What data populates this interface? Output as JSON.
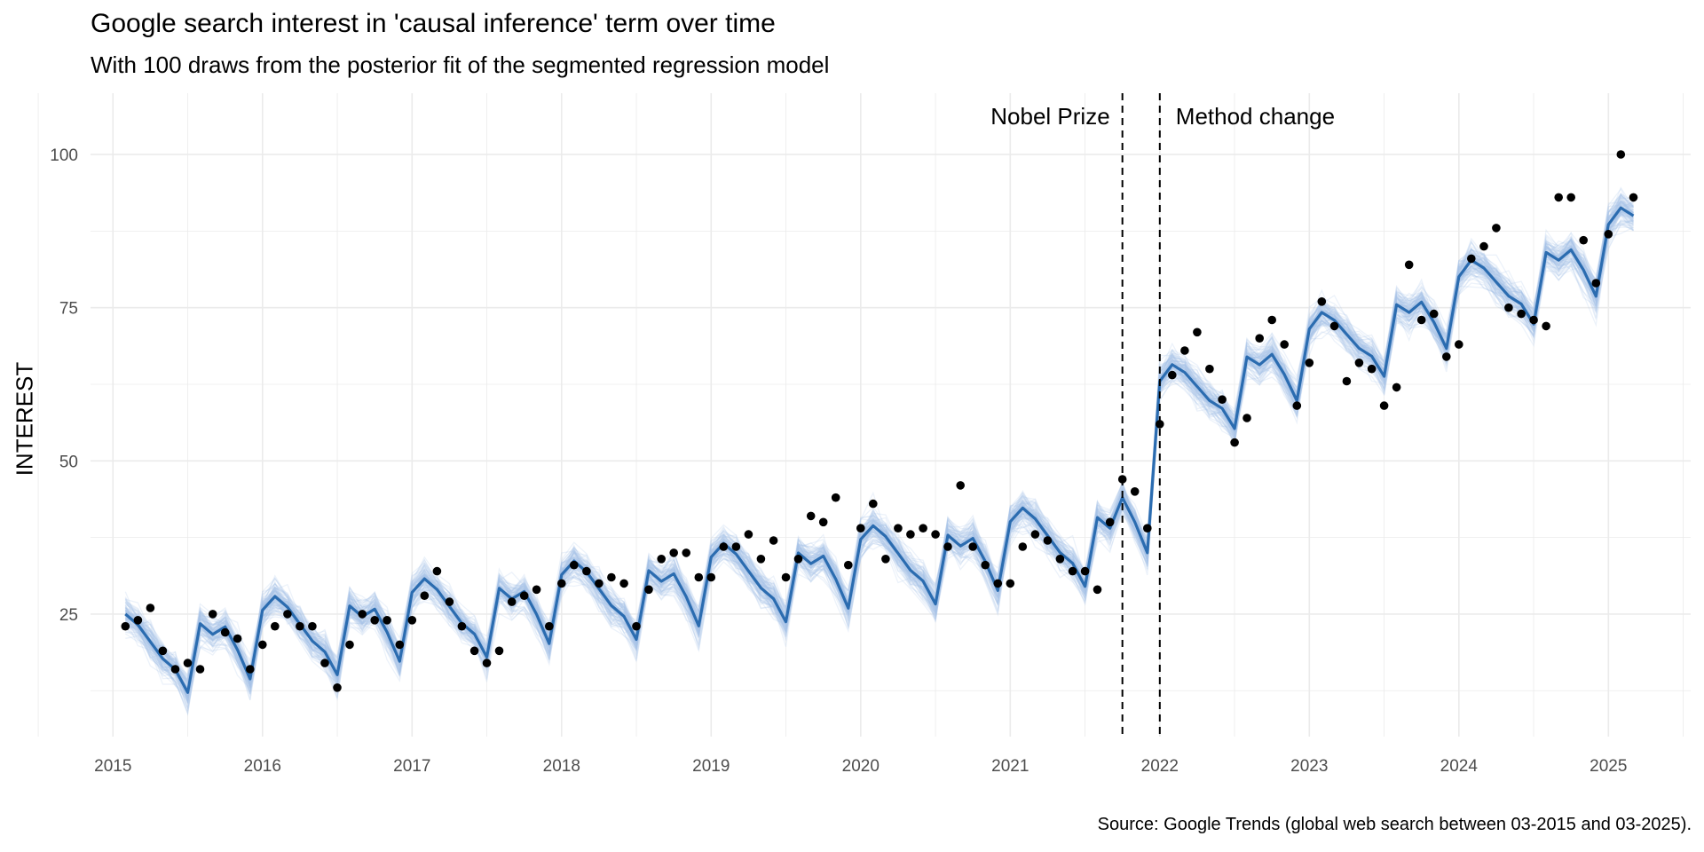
{
  "title": "Google search interest in 'causal inference' term over time",
  "subtitle": "With 100 draws from the posterior fit of the segmented regression model",
  "caption": "Source: Google Trends (global web search between 03-2015 and 03-2025).",
  "colors": {
    "fit": "#2b6cb0",
    "draws": "#a8c4e6",
    "points": "#000000",
    "grid": "#ebebeb",
    "vline": "#000000"
  },
  "chart_data": {
    "type": "scatter",
    "title": "Google search interest in 'causal inference' term over time",
    "ylabel": "INTEREST",
    "xlabel": "",
    "xlim": [
      2014.85,
      2025.55
    ],
    "ylim": [
      5,
      110
    ],
    "x_ticks": [
      2015,
      2016,
      2017,
      2018,
      2019,
      2020,
      2021,
      2022,
      2023,
      2024,
      2025
    ],
    "y_ticks": [
      25,
      50,
      75,
      100
    ],
    "grid": true,
    "legend": "none",
    "vlines": [
      {
        "x": 2021.75,
        "label": "Nobel Prize",
        "label_side": "left"
      },
      {
        "x": 2022.0,
        "label": "Method change",
        "label_side": "right"
      }
    ],
    "points": {
      "x": [
        2015.083,
        2015.167,
        2015.25,
        2015.333,
        2015.417,
        2015.5,
        2015.583,
        2015.667,
        2015.75,
        2015.833,
        2015.917,
        2016.0,
        2016.083,
        2016.167,
        2016.25,
        2016.333,
        2016.417,
        2016.5,
        2016.583,
        2016.667,
        2016.75,
        2016.833,
        2016.917,
        2017.0,
        2017.083,
        2017.167,
        2017.25,
        2017.333,
        2017.417,
        2017.5,
        2017.583,
        2017.667,
        2017.75,
        2017.833,
        2017.917,
        2018.0,
        2018.083,
        2018.167,
        2018.25,
        2018.333,
        2018.417,
        2018.5,
        2018.583,
        2018.667,
        2018.75,
        2018.833,
        2018.917,
        2019.0,
        2019.083,
        2019.167,
        2019.25,
        2019.333,
        2019.417,
        2019.5,
        2019.583,
        2019.667,
        2019.75,
        2019.833,
        2019.917,
        2020.0,
        2020.083,
        2020.167,
        2020.25,
        2020.333,
        2020.417,
        2020.5,
        2020.583,
        2020.667,
        2020.75,
        2020.833,
        2020.917,
        2021.0,
        2021.083,
        2021.167,
        2021.25,
        2021.333,
        2021.417,
        2021.5,
        2021.583,
        2021.667,
        2021.75,
        2021.833,
        2021.917,
        2022.0,
        2022.083,
        2022.167,
        2022.25,
        2022.333,
        2022.417,
        2022.5,
        2022.583,
        2022.667,
        2022.75,
        2022.833,
        2022.917,
        2023.0,
        2023.083,
        2023.167,
        2023.25,
        2023.333,
        2023.417,
        2023.5,
        2023.583,
        2023.667,
        2023.75,
        2023.833,
        2023.917,
        2024.0,
        2024.083,
        2024.167,
        2024.25,
        2024.333,
        2024.417,
        2024.5,
        2024.583,
        2024.667,
        2024.75,
        2024.833,
        2024.917,
        2025.0,
        2025.083,
        2025.167
      ],
      "y": [
        23,
        24,
        26,
        19,
        16,
        17,
        16,
        25,
        22,
        21,
        16,
        20,
        23,
        25,
        23,
        23,
        17,
        13,
        20,
        25,
        24,
        24,
        20,
        24,
        28,
        32,
        27,
        23,
        19,
        17,
        19,
        27,
        28,
        29,
        23,
        30,
        33,
        32,
        30,
        31,
        30,
        23,
        29,
        34,
        35,
        35,
        31,
        31,
        36,
        36,
        38,
        34,
        37,
        31,
        34,
        41,
        40,
        44,
        33,
        39,
        43,
        34,
        39,
        38,
        39,
        38,
        36,
        46,
        36,
        33,
        30,
        30,
        36,
        38,
        37,
        34,
        32,
        32,
        29,
        40,
        47,
        45,
        39,
        56,
        64,
        68,
        71,
        65,
        60,
        53,
        57,
        70,
        73,
        69,
        59,
        66,
        76,
        72,
        63,
        66,
        65,
        59,
        62,
        82,
        73,
        74,
        67,
        69,
        83,
        85,
        88,
        75,
        74,
        73,
        72,
        93,
        93,
        86,
        79,
        87,
        100,
        93
      ]
    },
    "model": {
      "description_label": "posterior draws",
      "n_draws": 100,
      "segment_breaks": [
        2021.75,
        2022.0
      ],
      "baseline": [
        {
          "start": 2015.083,
          "end": 2021.667,
          "from": 18.5,
          "to": 37.5
        },
        {
          "start": 2021.75,
          "end": 2021.917,
          "from": 41.5,
          "to": 41.5
        },
        {
          "start": 2022.0,
          "end": 2025.167,
          "from": 58.5,
          "to": 85.5
        }
      ],
      "seasonal_effect_by_month": [
        4.5,
        6.5,
        4.5,
        1.5,
        -1.5,
        -3.5,
        -7.5,
        3.5,
        1.5,
        2.5,
        -1.5,
        -6.5
      ]
    }
  }
}
